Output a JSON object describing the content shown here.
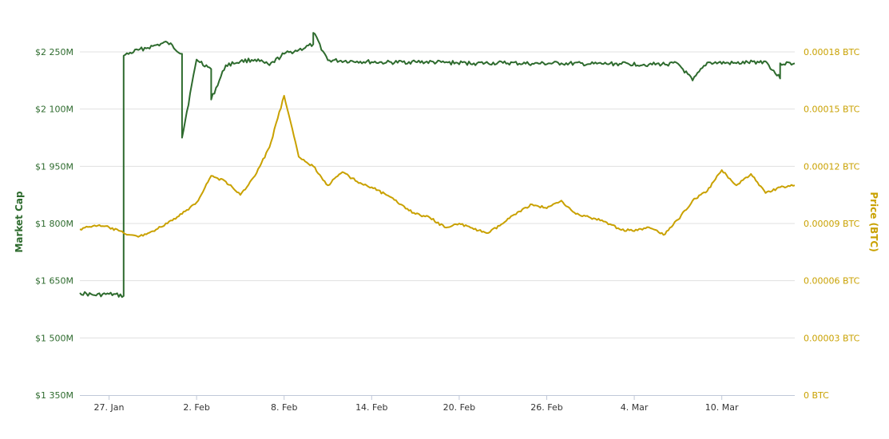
{
  "chart_data": {
    "type": "line",
    "title": "",
    "left_axis": {
      "label": "Market Cap",
      "color": "#2e6b2e",
      "ticks": [
        {
          "value": 1350,
          "label": "$1 350M"
        },
        {
          "value": 1500,
          "label": "$1 500M"
        },
        {
          "value": 1650,
          "label": "$1 650M"
        },
        {
          "value": 1800,
          "label": "$1 800M"
        },
        {
          "value": 1950,
          "label": "$1 950M"
        },
        {
          "value": 2100,
          "label": "$2 100M"
        },
        {
          "value": 2250,
          "label": "$2 250M"
        }
      ],
      "range": [
        1350,
        2250
      ]
    },
    "right_axis": {
      "label": "Price (BTC)",
      "color": "#c9a100",
      "ticks": [
        {
          "value": 0,
          "label": "0 BTC"
        },
        {
          "value": 3e-05,
          "label": "0.00003 BTC"
        },
        {
          "value": 6e-05,
          "label": "0.00006 BTC"
        },
        {
          "value": 9e-05,
          "label": "0.00009 BTC"
        },
        {
          "value": 0.00012,
          "label": "0.00012 BTC"
        },
        {
          "value": 0.00015,
          "label": "0.00015 BTC"
        },
        {
          "value": 0.00018,
          "label": "0.00018 BTC"
        }
      ],
      "range": [
        0,
        0.00018
      ]
    },
    "x_axis": {
      "range": [
        "2018-01-25",
        "2018-03-15"
      ],
      "ticks": [
        {
          "date": "2018-01-27",
          "label": "27. Jan"
        },
        {
          "date": "2018-02-02",
          "label": "2. Feb"
        },
        {
          "date": "2018-02-08",
          "label": "8. Feb"
        },
        {
          "date": "2018-02-14",
          "label": "14. Feb"
        },
        {
          "date": "2018-02-20",
          "label": "20. Feb"
        },
        {
          "date": "2018-02-26",
          "label": "26. Feb"
        },
        {
          "date": "2018-03-04",
          "label": "4. Mar"
        },
        {
          "date": "2018-03-10",
          "label": "10. Mar"
        }
      ]
    },
    "grid": true,
    "series": [
      {
        "name": "Market Cap",
        "axis": "left",
        "color": "#2e6b2e",
        "points": [
          [
            "2018-01-25",
            1618
          ],
          [
            "2018-01-26",
            1612
          ],
          [
            "2018-01-27",
            1615
          ],
          [
            "2018-01-28",
            1610
          ],
          [
            "2018-01-28",
            2240
          ],
          [
            "2018-01-29",
            2255
          ],
          [
            "2018-01-30",
            2265
          ],
          [
            "2018-01-31",
            2275
          ],
          [
            "2018-02-01",
            2245
          ],
          [
            "2018-02-01",
            2025
          ],
          [
            "2018-02-02",
            2230
          ],
          [
            "2018-02-03",
            2205
          ],
          [
            "2018-02-03",
            2125
          ],
          [
            "2018-02-04",
            2215
          ],
          [
            "2018-02-05",
            2225
          ],
          [
            "2018-02-06",
            2230
          ],
          [
            "2018-02-07",
            2215
          ],
          [
            "2018-02-08",
            2245
          ],
          [
            "2018-02-09",
            2255
          ],
          [
            "2018-02-10",
            2270
          ],
          [
            "2018-02-10",
            2300
          ],
          [
            "2018-02-11",
            2228
          ],
          [
            "2018-02-13",
            2225
          ],
          [
            "2018-02-15",
            2222
          ],
          [
            "2018-02-17",
            2224
          ],
          [
            "2018-02-19",
            2222
          ],
          [
            "2018-02-21",
            2220
          ],
          [
            "2018-02-23",
            2221
          ],
          [
            "2018-02-25",
            2219
          ],
          [
            "2018-02-27",
            2220
          ],
          [
            "2018-03-01",
            2218
          ],
          [
            "2018-03-03",
            2219
          ],
          [
            "2018-03-05",
            2217
          ],
          [
            "2018-03-07",
            2219
          ],
          [
            "2018-03-08",
            2175
          ],
          [
            "2018-03-09",
            2222
          ],
          [
            "2018-03-11",
            2220
          ],
          [
            "2018-03-13",
            2225
          ],
          [
            "2018-03-14",
            2180
          ],
          [
            "2018-03-14",
            2220
          ],
          [
            "2018-03-15",
            2220
          ]
        ]
      },
      {
        "name": "Price (BTC)",
        "axis": "right",
        "color": "#c9a100",
        "points": [
          [
            "2018-01-25",
            8.7e-05
          ],
          [
            "2018-01-26",
            8.9e-05
          ],
          [
            "2018-01-27",
            8.8e-05
          ],
          [
            "2018-01-28",
            8.5e-05
          ],
          [
            "2018-01-29",
            8.3e-05
          ],
          [
            "2018-01-30",
            8.6e-05
          ],
          [
            "2018-01-31",
            9e-05
          ],
          [
            "2018-02-01",
            9.5e-05
          ],
          [
            "2018-02-02",
            0.000101
          ],
          [
            "2018-02-03",
            0.000115
          ],
          [
            "2018-02-04",
            0.000112
          ],
          [
            "2018-02-05",
            0.000105
          ],
          [
            "2018-02-06",
            0.000115
          ],
          [
            "2018-02-07",
            0.00013
          ],
          [
            "2018-02-08",
            0.000157
          ],
          [
            "2018-02-09",
            0.000125
          ],
          [
            "2018-02-10",
            0.00012
          ],
          [
            "2018-02-11",
            0.00011
          ],
          [
            "2018-02-12",
            0.000117
          ],
          [
            "2018-02-13",
            0.000112
          ],
          [
            "2018-02-14",
            0.000109
          ],
          [
            "2018-02-15",
            0.000105
          ],
          [
            "2018-02-16",
            0.0001
          ],
          [
            "2018-02-17",
            9.5e-05
          ],
          [
            "2018-02-18",
            9.3e-05
          ],
          [
            "2018-02-19",
            8.8e-05
          ],
          [
            "2018-02-20",
            9e-05
          ],
          [
            "2018-02-21",
            8.7e-05
          ],
          [
            "2018-02-22",
            8.5e-05
          ],
          [
            "2018-02-23",
            9e-05
          ],
          [
            "2018-02-24",
            9.6e-05
          ],
          [
            "2018-02-25",
            0.0001
          ],
          [
            "2018-02-26",
            9.8e-05
          ],
          [
            "2018-02-27",
            0.000102
          ],
          [
            "2018-02-28",
            9.5e-05
          ],
          [
            "2018-03-01",
            9.3e-05
          ],
          [
            "2018-03-02",
            9.1e-05
          ],
          [
            "2018-03-03",
            8.7e-05
          ],
          [
            "2018-03-04",
            8.6e-05
          ],
          [
            "2018-03-05",
            8.8e-05
          ],
          [
            "2018-03-06",
            8.4e-05
          ],
          [
            "2018-03-07",
            9.2e-05
          ],
          [
            "2018-03-08",
            0.000102
          ],
          [
            "2018-03-09",
            0.000107
          ],
          [
            "2018-03-10",
            0.000118
          ],
          [
            "2018-03-11",
            0.00011
          ],
          [
            "2018-03-12",
            0.000116
          ],
          [
            "2018-03-13",
            0.000106
          ],
          [
            "2018-03-14",
            0.000109
          ],
          [
            "2018-03-15",
            0.00011
          ]
        ]
      }
    ]
  }
}
